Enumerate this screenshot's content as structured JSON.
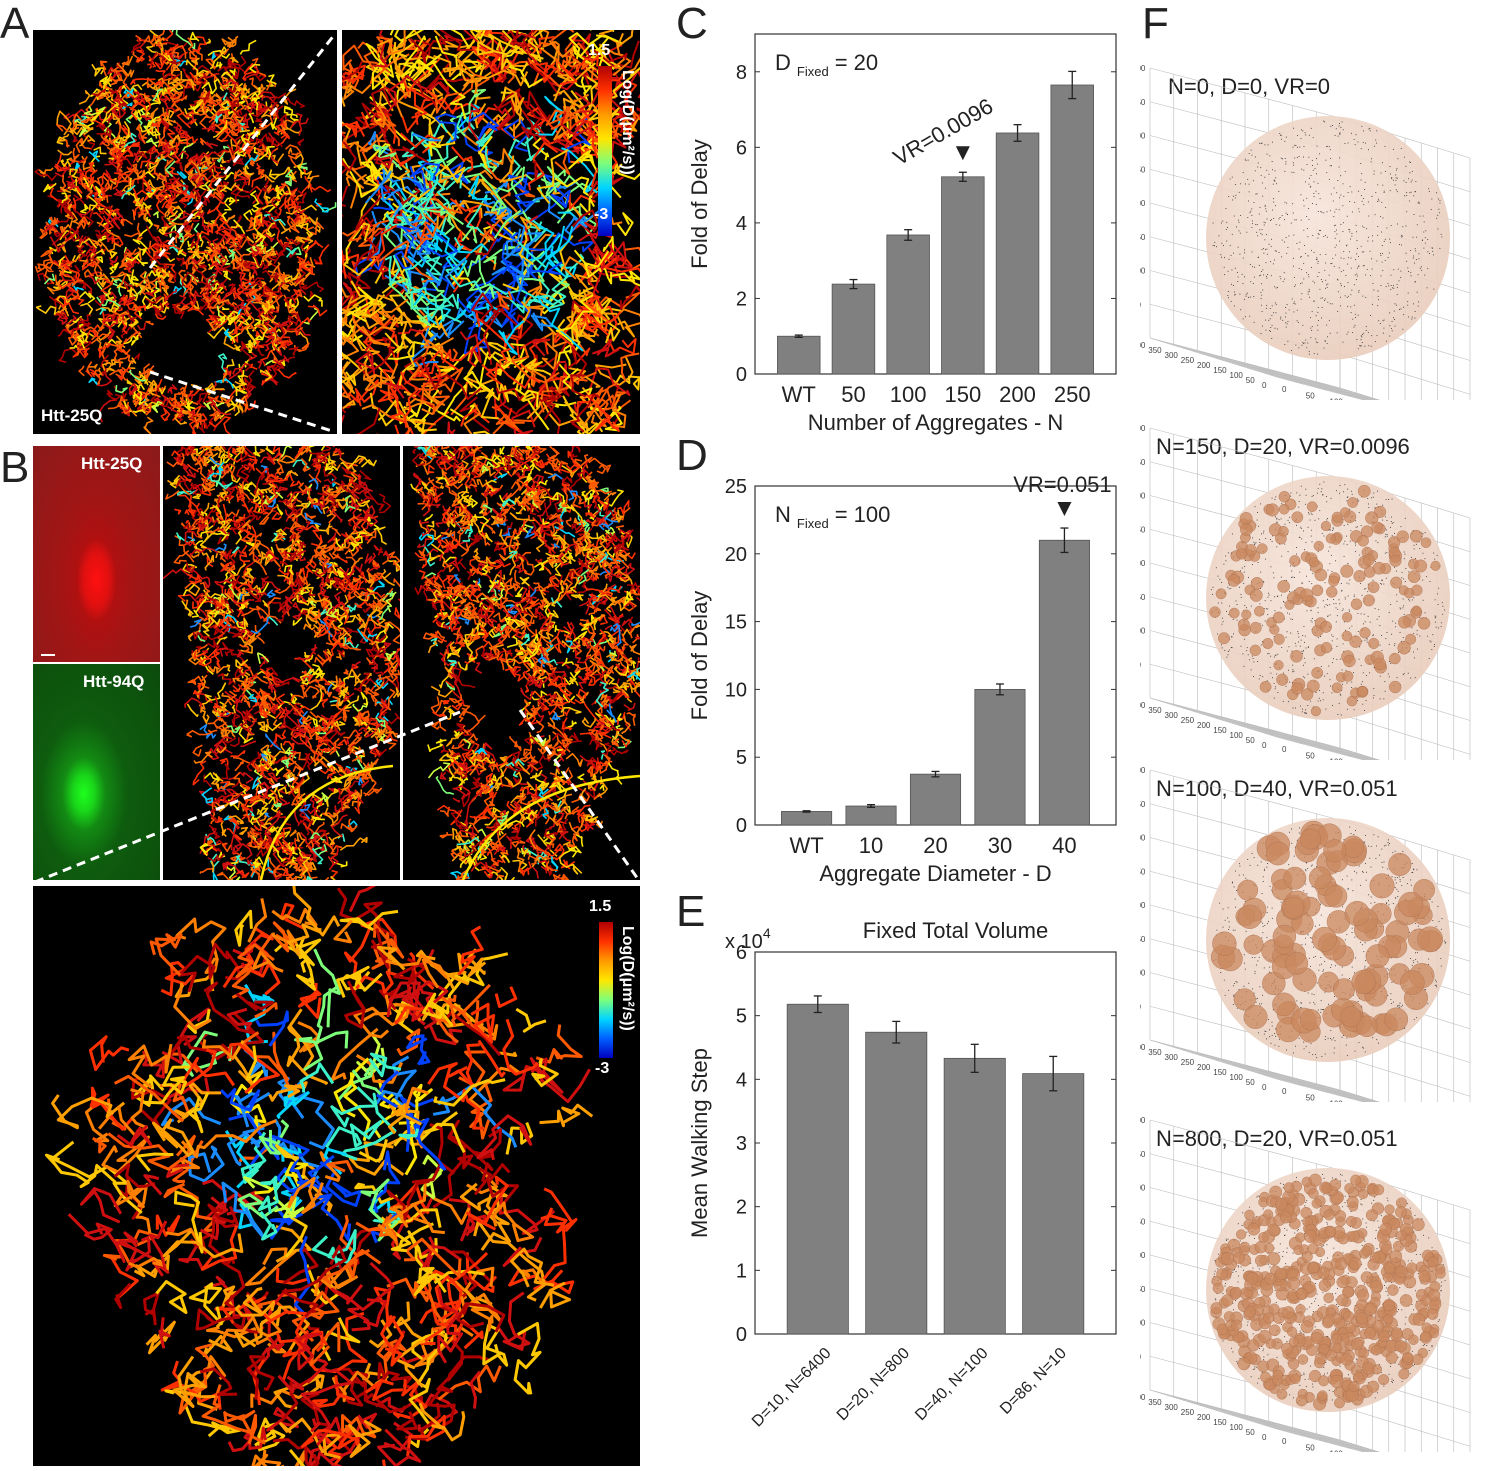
{
  "panels": {
    "A": {
      "letter": "A",
      "cell_label": "Htt-25Q",
      "colorbar": {
        "max": "1.5",
        "min": "-3",
        "title": "Log(D(μm²/s))"
      }
    },
    "B": {
      "letter": "B",
      "red_label": "Htt-25Q",
      "green_label": "Htt-94Q",
      "colorbar": {
        "max": "1.5",
        "min": "-3",
        "title": "Log(D(μm²/s))"
      }
    },
    "C": {
      "letter": "C"
    },
    "D": {
      "letter": "D"
    },
    "E": {
      "letter": "E"
    },
    "F": {
      "letter": "F"
    }
  },
  "colors": {
    "bar": "#808080",
    "track_hot": "#e8401a",
    "sphere": "#c9885f"
  },
  "chart_data": [
    {
      "panel": "C",
      "type": "bar",
      "categories": [
        "WT",
        "50",
        "100",
        "150",
        "200",
        "250"
      ],
      "values": [
        1.0,
        2.38,
        3.68,
        5.22,
        6.38,
        7.65
      ],
      "errors": [
        0.03,
        0.12,
        0.14,
        0.12,
        0.22,
        0.36
      ],
      "ylim": [
        0,
        9
      ],
      "yticks": [
        0,
        2,
        4,
        6,
        8
      ],
      "xlabel": "Number of Aggregates - N",
      "ylabel": "Fold of Delay",
      "annotation": {
        "text_main": "D",
        "text_sub": "Fixed",
        "text_value": "= 20"
      },
      "marker": {
        "category": "150",
        "text": "VR=0.0096"
      }
    },
    {
      "panel": "D",
      "type": "bar",
      "categories": [
        "WT",
        "10",
        "20",
        "30",
        "40"
      ],
      "values": [
        1.0,
        1.4,
        3.75,
        10.0,
        21.0
      ],
      "errors": [
        0.05,
        0.1,
        0.2,
        0.4,
        0.9
      ],
      "ylim": [
        0,
        25
      ],
      "yticks": [
        0,
        5,
        10,
        15,
        20,
        25
      ],
      "xlabel": "Aggregate Diameter - D",
      "ylabel": "Fold of Delay",
      "annotation": {
        "text_main": "N",
        "text_sub": "Fixed",
        "text_value": "= 100"
      },
      "marker": {
        "category": "40",
        "text": "VR=0.051"
      }
    },
    {
      "panel": "E",
      "type": "bar",
      "title": "Fixed Total Volume",
      "categories": [
        "D=10, N=6400",
        "D=20, N=800",
        "D=40, N=100",
        "D=86, N=10"
      ],
      "values": [
        51800,
        47400,
        43300,
        40900
      ],
      "errors": [
        1300,
        1700,
        2200,
        2700
      ],
      "ylim": [
        0,
        60000
      ],
      "yticks": [
        0,
        1,
        2,
        3,
        4,
        5,
        6
      ],
      "yscale_text": "x 10",
      "yscale_exp": "4",
      "ylabel": "Mean Walking Step"
    }
  ],
  "spheres": [
    {
      "title": "N=0, D=0, VR=0",
      "n": 0,
      "d": 0
    },
    {
      "title": "N=150, D=20, VR=0.0096",
      "n": 150,
      "d": 20
    },
    {
      "title": "N=100, D=40, VR=0.051",
      "n": 100,
      "d": 40
    },
    {
      "title": "N=800, D=20, VR=0.051",
      "n": 800,
      "d": 20
    }
  ],
  "sphere_axis_ticks": [
    "0",
    "50",
    "100",
    "150",
    "200",
    "250",
    "300",
    "350",
    "400"
  ]
}
